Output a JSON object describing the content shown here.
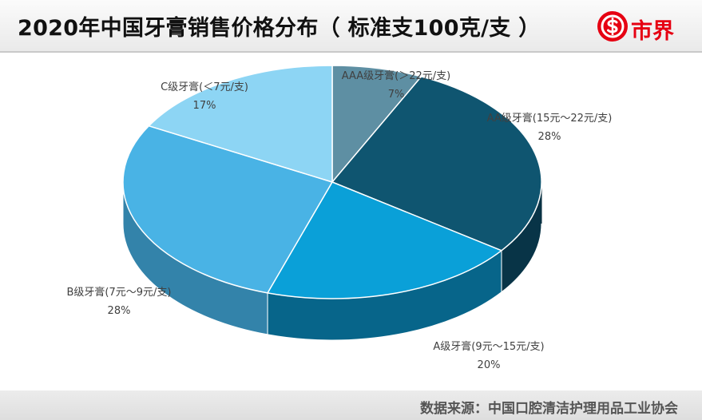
{
  "header": {
    "title": "2020年中国牙膏销售价格分布（ 标准支100克/支 ）",
    "brand": "市界",
    "brand_color": "#e60012",
    "brand_icon": "dollar-sign-icon"
  },
  "footer": {
    "source": "数据来源：中国口腔清洁护理用品工业协会"
  },
  "chart_data": {
    "type": "pie",
    "style": "3d",
    "title": "2020年中国牙膏销售价格分布（ 标准支100克/支 ）",
    "start_angle_deg": 90,
    "direction": "clockwise",
    "slices": [
      {
        "label": "AAA级牙膏(＞22元/支)",
        "value": 7,
        "value_label": "7%",
        "color": "#5e8fa3",
        "side": "#3d6877"
      },
      {
        "label": "AA级牙膏(15元～22元/支)",
        "value": 28,
        "value_label": "28%",
        "color": "#0f5570",
        "side": "#083447"
      },
      {
        "label": "A级牙膏(9元～15元/支)",
        "value": 20,
        "value_label": "20%",
        "color": "#0aa0d8",
        "side": "#07658a"
      },
      {
        "label": "B级牙膏(7元～9元/支)",
        "value": 28,
        "value_label": "28%",
        "color": "#49b3e5",
        "side": "#3383aa"
      },
      {
        "label": "C级牙膏(＜7元/支)",
        "value": 17,
        "value_label": "17%",
        "color": "#8dd5f4",
        "side": "#6aa9c6"
      }
    ]
  }
}
